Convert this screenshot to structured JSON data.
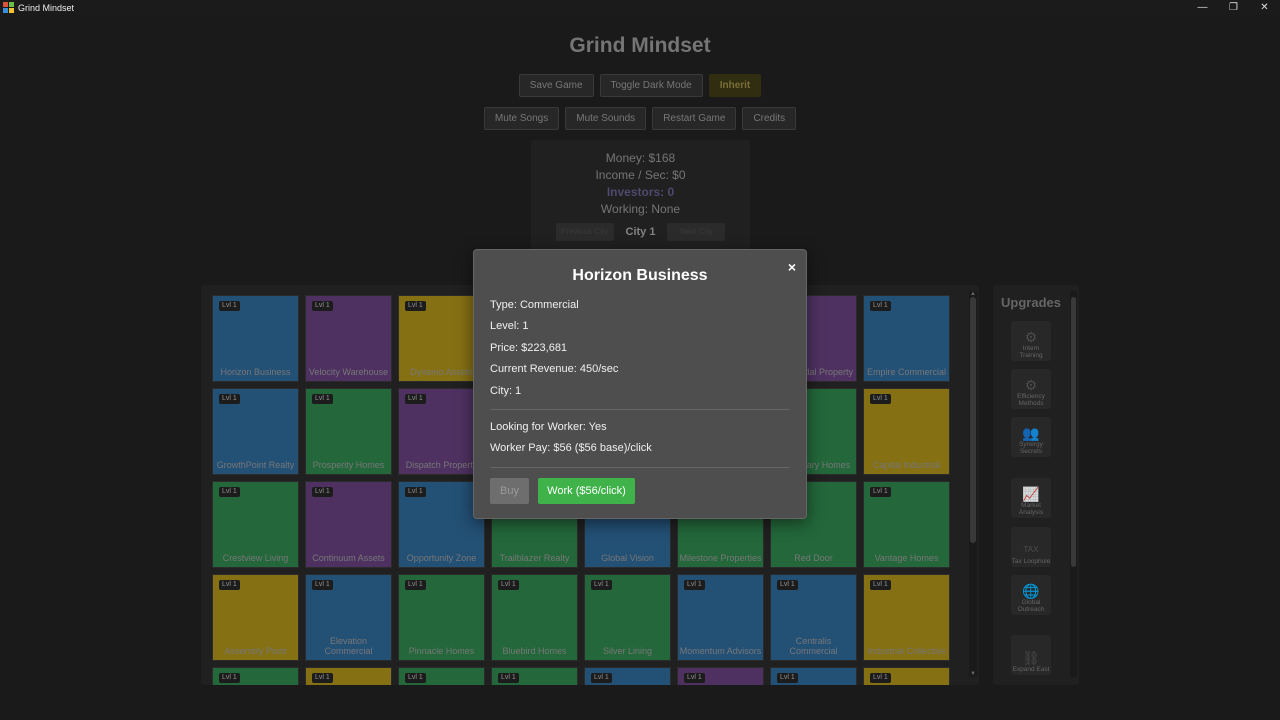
{
  "window": {
    "title": "Grind Mindset",
    "minimize_glyph": "—",
    "restore_glyph": "❐",
    "close_glyph": "✕"
  },
  "game_title": "Grind Mindset",
  "top_buttons": {
    "save": "Save Game",
    "dark_mode": "Toggle Dark Mode",
    "inherit": "Inherit"
  },
  "second_buttons": {
    "mute_songs": "Mute Songs",
    "mute_sounds": "Mute Sounds",
    "restart": "Restart Game",
    "credits": "Credits"
  },
  "stats": {
    "money": "Money: $168",
    "income": "Income / Sec: $0",
    "investors": "Investors: 0",
    "working": "Working: None",
    "prev_city": "Previous City",
    "city": "City 1",
    "next_city": "Next City"
  },
  "colors": {
    "blue": "#2a5e8a",
    "purple": "#5c3a73",
    "yellow": "#9d8418",
    "green": "#2a7a45",
    "work_button": "#3fb34a"
  },
  "tiles": [
    {
      "name": "Horizon Business",
      "level": "Lvl 1",
      "color": "blue"
    },
    {
      "name": "Velocity Warehouse",
      "level": "Lvl 1",
      "color": "purple"
    },
    {
      "name": "Dynamo Assets",
      "level": "Lvl 1",
      "color": "yellow"
    },
    {
      "name": "",
      "level": "",
      "color": "blue"
    },
    {
      "name": "",
      "level": "",
      "color": "blue"
    },
    {
      "name": "",
      "level": "",
      "color": "blue"
    },
    {
      "name": "Intermodal Property",
      "level": "Lvl 1",
      "color": "purple"
    },
    {
      "name": "Empire Commercial",
      "level": "Lvl 1",
      "color": "blue"
    },
    {
      "name": "GrowthPoint Realty",
      "level": "Lvl 1",
      "color": "blue"
    },
    {
      "name": "Prosperity Homes",
      "level": "Lvl 1",
      "color": "green"
    },
    {
      "name": "Dispatch Property",
      "level": "Lvl 1",
      "color": "purple"
    },
    {
      "name": "",
      "level": "",
      "color": "green"
    },
    {
      "name": "",
      "level": "",
      "color": "green"
    },
    {
      "name": "",
      "level": "",
      "color": "green"
    },
    {
      "name": "Legendary Homes",
      "level": "Lvl 1",
      "color": "green"
    },
    {
      "name": "Capital Industrial",
      "level": "Lvl 1",
      "color": "yellow"
    },
    {
      "name": "Crestview Living",
      "level": "Lvl 1",
      "color": "green"
    },
    {
      "name": "Continuum Assets",
      "level": "Lvl 1",
      "color": "purple"
    },
    {
      "name": "Opportunity Zone",
      "level": "Lvl 1",
      "color": "blue"
    },
    {
      "name": "Trailblazer Realty",
      "level": "Lvl 1",
      "color": "green"
    },
    {
      "name": "Global Vision",
      "level": "Lvl 1",
      "color": "blue"
    },
    {
      "name": "Milestone Properties",
      "level": "Lvl 1",
      "color": "green"
    },
    {
      "name": "Red Door",
      "level": "Lvl 1",
      "color": "green"
    },
    {
      "name": "Vantage Homes",
      "level": "Lvl 1",
      "color": "green"
    },
    {
      "name": "Assembly Point",
      "level": "Lvl 1",
      "color": "yellow"
    },
    {
      "name": "Elevation Commercial",
      "level": "Lvl 1",
      "color": "blue"
    },
    {
      "name": "Pinnacle Homes",
      "level": "Lvl 1",
      "color": "green"
    },
    {
      "name": "Bluebird Homes",
      "level": "Lvl 1",
      "color": "green"
    },
    {
      "name": "Silver Lining",
      "level": "Lvl 1",
      "color": "green"
    },
    {
      "name": "Momentum Advisors",
      "level": "Lvl 1",
      "color": "blue"
    },
    {
      "name": "Centralis Commercial",
      "level": "Lvl 1",
      "color": "blue"
    },
    {
      "name": "Industrial Collective",
      "level": "Lvl 1",
      "color": "yellow"
    },
    {
      "name": "",
      "level": "Lvl 1",
      "color": "green"
    },
    {
      "name": "",
      "level": "Lvl 1",
      "color": "yellow"
    },
    {
      "name": "",
      "level": "Lvl 1",
      "color": "green"
    },
    {
      "name": "",
      "level": "Lvl 1",
      "color": "green"
    },
    {
      "name": "",
      "level": "Lvl 1",
      "color": "blue"
    },
    {
      "name": "",
      "level": "Lvl 1",
      "color": "purple"
    },
    {
      "name": "",
      "level": "Lvl 1",
      "color": "blue"
    },
    {
      "name": "",
      "level": "Lvl 1",
      "color": "yellow"
    }
  ],
  "upgrades": {
    "title": "Upgrades",
    "items": [
      {
        "label": "Intern Training",
        "icon": "gear-icon",
        "glyph": "⚙"
      },
      {
        "label": "Efficiency Methods",
        "icon": "gears-icon",
        "glyph": "⚙"
      },
      {
        "label": "Synergy Secrets",
        "icon": "people-icon",
        "glyph": "👥"
      },
      {
        "label": "Market Analysis",
        "icon": "chart-icon",
        "glyph": "📈"
      },
      {
        "label": "Tax Loophole",
        "icon": "tax-icon",
        "glyph": "TAX"
      },
      {
        "label": "Global Outreach",
        "icon": "globe-icon",
        "glyph": "🌐"
      },
      {
        "label": "Expand East",
        "icon": "network-icon",
        "glyph": "⛓"
      }
    ]
  },
  "modal": {
    "title": "Horizon Business",
    "close": "×",
    "type": "Type: Commercial",
    "level": "Level: 1",
    "price": "Price: $223,681",
    "revenue": "Current Revenue: 450/sec",
    "city": "City: 1",
    "looking": "Looking for Worker: Yes",
    "pay": "Worker Pay: $56 ($56 base)/click",
    "buy": "Buy",
    "work": "Work ($56/click)"
  }
}
